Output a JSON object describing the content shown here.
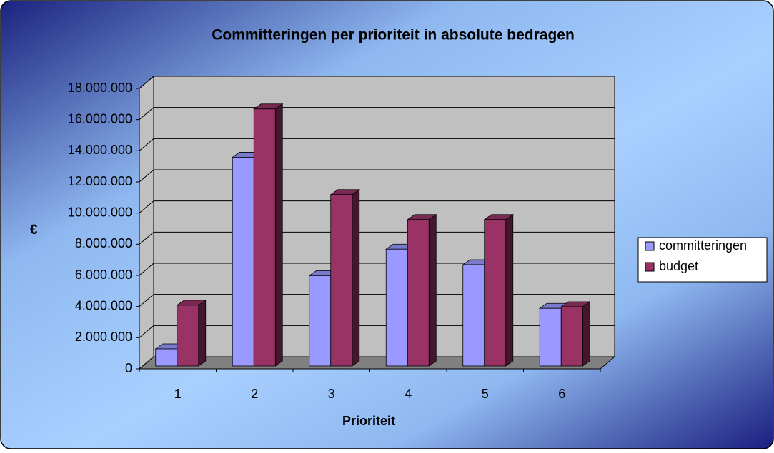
{
  "chart_data": {
    "type": "bar3d",
    "title": "Committeringen per prioriteit in absolute bedragen",
    "x_label": "Prioriteit",
    "y_label": "€",
    "categories": [
      "1",
      "2",
      "3",
      "4",
      "5",
      "6"
    ],
    "series": [
      {
        "name": "committeringen",
        "color": "#9999ff",
        "values": [
          1100000,
          13400000,
          5800000,
          7500000,
          6500000,
          3700000
        ]
      },
      {
        "name": "budget",
        "color": "#993366",
        "values": [
          3900000,
          16500000,
          11000000,
          9400000,
          9400000,
          3800000
        ]
      }
    ],
    "ylim": [
      0,
      18000000
    ],
    "yticks": [
      0,
      {
        "value": 2000000,
        "label": "2.000.000"
      },
      {
        "value": 4000000,
        "label": "4.000.000"
      },
      {
        "value": 6000000,
        "label": "6.000.000"
      },
      {
        "value": 8000000,
        "label": "8.000.000"
      },
      {
        "value": 10000000,
        "label": "10.000.000"
      },
      {
        "value": 12000000,
        "label": "12.000.000"
      },
      {
        "value": 14000000,
        "label": "14.000.000"
      },
      {
        "value": 16000000,
        "label": "16.000.000"
      },
      {
        "value": 18000000,
        "label": "18.000.000"
      }
    ],
    "grid": true,
    "legend": "right"
  }
}
